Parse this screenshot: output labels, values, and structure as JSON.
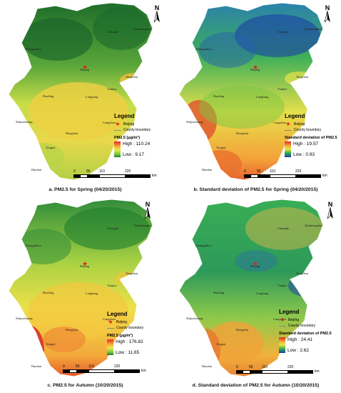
{
  "panels": [
    {
      "caption": "a. PM2.5 for Spring (04/20/2015)",
      "legend": {
        "title": "Legend",
        "capital": "Beijing",
        "boundary": "County boundary",
        "subtitle": "PM2.5 (μg/m³)",
        "high": "High : 110.24",
        "low": "Low : 9.17"
      },
      "north": "N",
      "scale": {
        "ticks": [
          "0",
          "55",
          "110",
          "220"
        ],
        "unit": "km"
      },
      "cities": {
        "zhangjiakou": "Zhangjiakou",
        "chengde": "Chengde",
        "beijing": "Beijing",
        "tianjin": "Tianjin",
        "tangshan": "Tangshan",
        "baoding": "Baoding",
        "langfang": "Langfang",
        "cangzhou": "Cangzhou",
        "shijiazhuang": "Shijiazhuang",
        "hengshui": "Hengshui",
        "xingtai": "Xingtai",
        "handan": "Handan",
        "qinhuangdao": "Qinhuangdao"
      }
    },
    {
      "caption": "b. Standard deviation of PM2.5 for Spring (04/20/2015)",
      "legend": {
        "title": "Legend",
        "capital": "Beijing",
        "boundary": "County boundary",
        "subtitle": "Standard deviation of PM2.5",
        "high": "High : 19.57",
        "low": "Low : 0.93"
      },
      "north": "N",
      "scale": {
        "ticks": [
          "0",
          "55",
          "110",
          "220"
        ],
        "unit": "km"
      },
      "cities": {
        "zhangjiakou": "Zhangjiakou",
        "chengde": "Chengde",
        "beijing": "Beijing",
        "tianjin": "Tianjin",
        "tangshan": "Tangshan",
        "baoding": "Baoding",
        "langfang": "Langfang",
        "cangzhou": "Cangzhou",
        "shijiazhuang": "Shijiazhuang",
        "hengshui": "Hengshui",
        "xingtai": "Xingtai",
        "handan": "Handan",
        "qinhuangdao": "Qinhuangdao"
      }
    },
    {
      "caption": "c. PM2.5 for Autumn (10/20/2015)",
      "legend": {
        "title": "Legend",
        "capital": "Beijing",
        "boundary": "County boundary",
        "subtitle": "PM2.5 (μg/m³)",
        "high": "High : 176.82",
        "low": "Low : 11.65"
      },
      "north": "N",
      "scale": {
        "ticks": [
          "0",
          "55",
          "110",
          "220"
        ],
        "unit": "km"
      },
      "cities": {
        "zhangjiakou": "Zhangjiakou",
        "chengde": "Chengde",
        "beijing": "Beijing",
        "tianjin": "Tianjin",
        "tangshan": "Tangshan",
        "baoding": "Baoding",
        "langfang": "Langfang",
        "cangzhou": "Cangzhou",
        "shijiazhuang": "Shijiazhuang",
        "hengshui": "Hengshui",
        "xingtai": "Xingtai",
        "handan": "Handan",
        "qinhuangdao": "Qinhuangdao"
      }
    },
    {
      "caption": "d. Standard deviation of PM2.5 for Autumn (10/20/2015)",
      "legend": {
        "title": "Legend",
        "capital": "Beijing",
        "boundary": "County boundary",
        "subtitle": "Standard deviation of PM2.5",
        "high": "High : 24.41",
        "low": "Low : 2.62"
      },
      "north": "N",
      "scale": {
        "ticks": [
          "0",
          "55",
          "110",
          "220"
        ],
        "unit": "km"
      },
      "cities": {
        "zhangjiakou": "Zhangjiakou",
        "chengde": "Chengde",
        "beijing": "Beijing",
        "tianjin": "Tianjin",
        "tangshan": "Tangshan",
        "baoding": "Baoding",
        "langfang": "Langfang",
        "cangzhou": "Cangzhou",
        "shijiazhuang": "Shijiazhuang",
        "hengshui": "Hengshui",
        "xingtai": "Xingtai",
        "handan": "Handan",
        "qinhuangdao": "Qinhuangdao"
      }
    }
  ],
  "colors": {
    "pm_high": "#e8252b",
    "pm_mid": "#e9e84d",
    "pm_low": "#1e7f2f",
    "sd_high": "#e8252b",
    "sd_mid": "#34b04a",
    "sd_low": "#1a40a8",
    "capital_star": "#e02020"
  }
}
